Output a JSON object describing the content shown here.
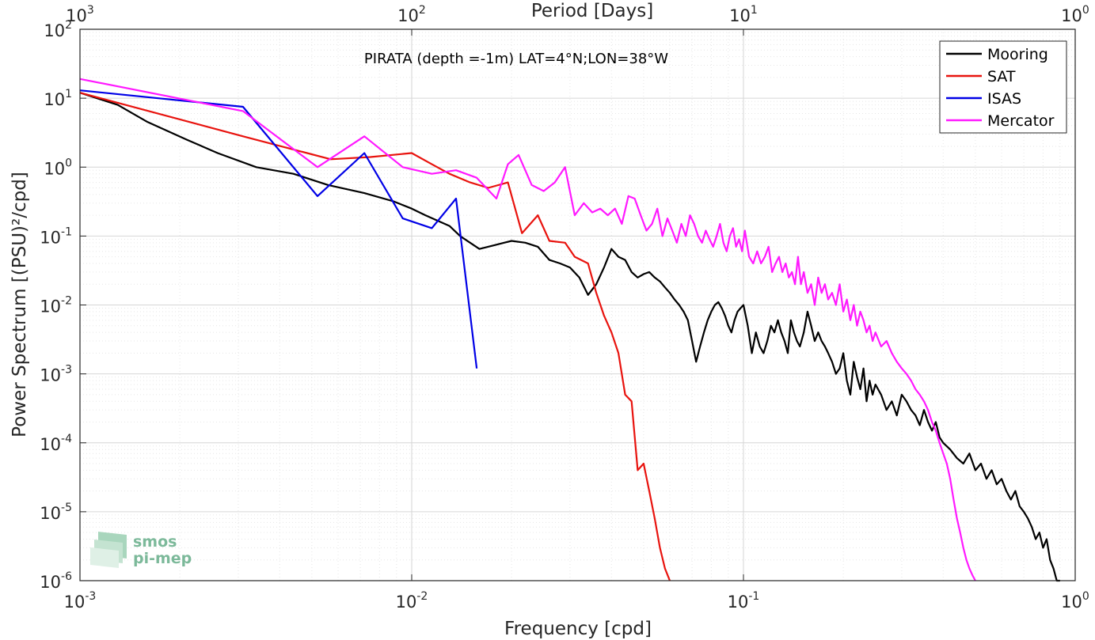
{
  "chart_data": {
    "type": "line",
    "title": "PIRATA (depth =-1m) LAT=4°N;LON=38°W",
    "xlabel": "Frequency [cpd]",
    "ylabel": "Power Spectrum [(PSU)²/cpd]",
    "top_xlabel": "Period [Days]",
    "x_scale": "log",
    "y_scale": "log",
    "xlim": [
      0.001,
      1
    ],
    "ylim": [
      1e-06,
      100
    ],
    "x_ticks": [
      {
        "base": "10",
        "exp": "-3"
      },
      {
        "base": "10",
        "exp": "-2"
      },
      {
        "base": "10",
        "exp": "-1"
      },
      {
        "base": "10",
        "exp": "0"
      }
    ],
    "top_ticks": [
      {
        "base": "10",
        "exp": "3"
      },
      {
        "base": "10",
        "exp": "2"
      },
      {
        "base": "10",
        "exp": "1"
      },
      {
        "base": "10",
        "exp": "0"
      }
    ],
    "y_ticks": [
      {
        "base": "10",
        "exp": "-6"
      },
      {
        "base": "10",
        "exp": "-5"
      },
      {
        "base": "10",
        "exp": "-4"
      },
      {
        "base": "10",
        "exp": "-3"
      },
      {
        "base": "10",
        "exp": "-2"
      },
      {
        "base": "10",
        "exp": "-1"
      },
      {
        "base": "10",
        "exp": "0"
      },
      {
        "base": "10",
        "exp": "1"
      },
      {
        "base": "10",
        "exp": "2"
      }
    ],
    "grid": true,
    "legend_position": "top-right",
    "series": [
      {
        "name": "Mooring",
        "color": "#000000",
        "x": [
          0.001,
          0.0013,
          0.0016,
          0.0021,
          0.0026,
          0.0034,
          0.0044,
          0.0056,
          0.0072,
          0.0088,
          0.01,
          0.011,
          0.013,
          0.014,
          0.016,
          0.018,
          0.02,
          0.022,
          0.024,
          0.026,
          0.028,
          0.03,
          0.032,
          0.034,
          0.036,
          0.038,
          0.04,
          0.042,
          0.044,
          0.046,
          0.048,
          0.05,
          0.052,
          0.054,
          0.056,
          0.058,
          0.06,
          0.062,
          0.064,
          0.066,
          0.068,
          0.07,
          0.072,
          0.074,
          0.076,
          0.078,
          0.08,
          0.082,
          0.084,
          0.086,
          0.088,
          0.09,
          0.092,
          0.094,
          0.096,
          0.098,
          0.1,
          0.103,
          0.106,
          0.109,
          0.112,
          0.115,
          0.118,
          0.121,
          0.124,
          0.127,
          0.13,
          0.133,
          0.136,
          0.139,
          0.142,
          0.145,
          0.148,
          0.152,
          0.156,
          0.16,
          0.164,
          0.168,
          0.172,
          0.176,
          0.18,
          0.185,
          0.19,
          0.195,
          0.2,
          0.205,
          0.21,
          0.215,
          0.22,
          0.225,
          0.23,
          0.235,
          0.24,
          0.245,
          0.25,
          0.26,
          0.27,
          0.28,
          0.29,
          0.3,
          0.31,
          0.32,
          0.33,
          0.34,
          0.35,
          0.36,
          0.37,
          0.38,
          0.39,
          0.4,
          0.42,
          0.44,
          0.46,
          0.48,
          0.5,
          0.52,
          0.54,
          0.56,
          0.58,
          0.6,
          0.62,
          0.64,
          0.66,
          0.68,
          0.7,
          0.72,
          0.74,
          0.76,
          0.78,
          0.8,
          0.82,
          0.84,
          0.86,
          0.88,
          0.9
        ],
        "y": [
          12,
          8,
          4.5,
          2.5,
          1.6,
          1.0,
          0.8,
          0.55,
          0.42,
          0.32,
          0.25,
          0.2,
          0.14,
          0.1,
          0.065,
          0.075,
          0.085,
          0.08,
          0.07,
          0.045,
          0.04,
          0.035,
          0.025,
          0.014,
          0.02,
          0.035,
          0.065,
          0.05,
          0.045,
          0.03,
          0.025,
          0.028,
          0.03,
          0.025,
          0.022,
          0.018,
          0.015,
          0.012,
          0.01,
          0.008,
          0.006,
          0.003,
          0.0015,
          0.0025,
          0.004,
          0.006,
          0.008,
          0.01,
          0.011,
          0.009,
          0.007,
          0.005,
          0.004,
          0.006,
          0.008,
          0.009,
          0.01,
          0.005,
          0.002,
          0.004,
          0.0025,
          0.002,
          0.003,
          0.005,
          0.004,
          0.006,
          0.004,
          0.003,
          0.002,
          0.006,
          0.004,
          0.003,
          0.0025,
          0.004,
          0.008,
          0.005,
          0.003,
          0.004,
          0.003,
          0.0025,
          0.002,
          0.0015,
          0.001,
          0.0012,
          0.002,
          0.0008,
          0.0005,
          0.0015,
          0.0009,
          0.0006,
          0.0012,
          0.0004,
          0.0008,
          0.0005,
          0.0007,
          0.0005,
          0.0003,
          0.0004,
          0.00025,
          0.0005,
          0.0004,
          0.0003,
          0.00025,
          0.00018,
          0.0003,
          0.0002,
          0.00015,
          0.0002,
          0.00012,
          0.0001,
          8e-05,
          6e-05,
          5e-05,
          7e-05,
          4e-05,
          5e-05,
          3e-05,
          4e-05,
          2.5e-05,
          3e-05,
          2e-05,
          1.5e-05,
          2e-05,
          1.2e-05,
          1e-05,
          8e-06,
          6e-06,
          4e-06,
          5e-06,
          3e-06,
          4e-06,
          2e-06,
          1.5e-06,
          1e-06,
          1e-06
        ]
      },
      {
        "name": "SAT",
        "color": "#e8130e",
        "x": [
          0.001,
          0.0031,
          0.0057,
          0.0075,
          0.01,
          0.0115,
          0.013,
          0.015,
          0.017,
          0.0195,
          0.0215,
          0.024,
          0.026,
          0.029,
          0.031,
          0.034,
          0.036,
          0.038,
          0.04,
          0.042,
          0.044,
          0.046,
          0.048,
          0.05,
          0.052,
          0.054,
          0.056,
          0.058,
          0.06
        ],
        "y": [
          12,
          2.8,
          1.3,
          1.4,
          1.6,
          1.1,
          0.8,
          0.6,
          0.5,
          0.6,
          0.11,
          0.2,
          0.085,
          0.08,
          0.05,
          0.04,
          0.015,
          0.007,
          0.004,
          0.002,
          0.0005,
          0.0004,
          4e-05,
          5e-05,
          2e-05,
          8e-06,
          3e-06,
          1.5e-06,
          1e-06
        ]
      },
      {
        "name": "ISAS",
        "color": "#0000e6",
        "x": [
          0.001,
          0.0031,
          0.0052,
          0.0072,
          0.0094,
          0.0115,
          0.0136,
          0.0157
        ],
        "y": [
          13,
          7.5,
          0.38,
          1.6,
          0.18,
          0.13,
          0.35,
          0.0012
        ]
      },
      {
        "name": "Mercator",
        "color": "#ff19ff",
        "x": [
          0.001,
          0.0031,
          0.0052,
          0.0072,
          0.0094,
          0.0115,
          0.0136,
          0.0157,
          0.018,
          0.0195,
          0.021,
          0.023,
          0.025,
          0.027,
          0.029,
          0.031,
          0.033,
          0.035,
          0.037,
          0.039,
          0.041,
          0.043,
          0.045,
          0.047,
          0.049,
          0.051,
          0.053,
          0.055,
          0.057,
          0.059,
          0.061,
          0.063,
          0.065,
          0.067,
          0.069,
          0.071,
          0.073,
          0.075,
          0.077,
          0.079,
          0.081,
          0.083,
          0.085,
          0.087,
          0.089,
          0.091,
          0.093,
          0.095,
          0.097,
          0.099,
          0.101,
          0.104,
          0.107,
          0.11,
          0.113,
          0.116,
          0.119,
          0.122,
          0.125,
          0.128,
          0.131,
          0.134,
          0.137,
          0.14,
          0.143,
          0.146,
          0.149,
          0.152,
          0.156,
          0.16,
          0.164,
          0.168,
          0.172,
          0.176,
          0.18,
          0.185,
          0.19,
          0.195,
          0.2,
          0.205,
          0.21,
          0.215,
          0.22,
          0.225,
          0.23,
          0.235,
          0.24,
          0.245,
          0.25,
          0.26,
          0.27,
          0.28,
          0.29,
          0.3,
          0.31,
          0.32,
          0.33,
          0.34,
          0.35,
          0.36,
          0.37,
          0.38,
          0.39,
          0.4,
          0.41,
          0.42,
          0.43,
          0.44,
          0.45,
          0.46,
          0.47,
          0.48,
          0.49,
          0.5
        ],
        "y": [
          19,
          6.5,
          1.0,
          2.8,
          1.0,
          0.8,
          0.9,
          0.7,
          0.35,
          1.1,
          1.5,
          0.55,
          0.45,
          0.6,
          1.0,
          0.2,
          0.3,
          0.22,
          0.25,
          0.2,
          0.25,
          0.15,
          0.38,
          0.35,
          0.2,
          0.12,
          0.15,
          0.25,
          0.1,
          0.18,
          0.12,
          0.08,
          0.15,
          0.1,
          0.2,
          0.15,
          0.1,
          0.08,
          0.12,
          0.09,
          0.07,
          0.1,
          0.15,
          0.08,
          0.06,
          0.1,
          0.13,
          0.07,
          0.09,
          0.06,
          0.12,
          0.05,
          0.04,
          0.06,
          0.04,
          0.05,
          0.07,
          0.03,
          0.04,
          0.05,
          0.03,
          0.04,
          0.025,
          0.03,
          0.02,
          0.05,
          0.02,
          0.03,
          0.015,
          0.02,
          0.01,
          0.025,
          0.015,
          0.02,
          0.012,
          0.015,
          0.01,
          0.02,
          0.008,
          0.012,
          0.006,
          0.01,
          0.005,
          0.008,
          0.006,
          0.004,
          0.005,
          0.003,
          0.004,
          0.0025,
          0.003,
          0.002,
          0.0015,
          0.0012,
          0.001,
          0.0008,
          0.0006,
          0.0005,
          0.0004,
          0.0003,
          0.0002,
          0.00015,
          0.0001,
          7e-05,
          5e-05,
          3e-05,
          1.5e-05,
          8e-06,
          5e-06,
          3e-06,
          2e-06,
          1.5e-06,
          1.2e-06,
          1e-06
        ]
      }
    ]
  },
  "logo": {
    "line1": "smos",
    "line2": "pi-mep"
  }
}
